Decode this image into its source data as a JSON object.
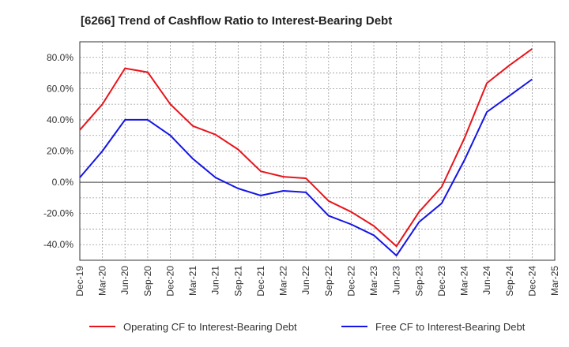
{
  "chart_data": {
    "type": "line",
    "title": "[6266]  Trend of Cashflow Ratio to Interest-Bearing Debt",
    "xlabel": "",
    "ylabel": "",
    "x": [
      "Dec-19",
      "Mar-20",
      "Jun-20",
      "Sep-20",
      "Dec-20",
      "Mar-21",
      "Jun-21",
      "Sep-21",
      "Dec-21",
      "Mar-22",
      "Jun-22",
      "Sep-22",
      "Dec-22",
      "Mar-23",
      "Jun-23",
      "Sep-23",
      "Dec-23",
      "Mar-24",
      "Jun-24",
      "Sep-24",
      "Dec-24",
      "Mar-25"
    ],
    "y_ticks": [
      "-40.0%",
      "-20.0%",
      "0.0%",
      "20.0%",
      "40.0%",
      "60.0%",
      "80.0%"
    ],
    "ylim": [
      -50,
      90
    ],
    "grid": true,
    "legend_position": "bottom",
    "series": [
      {
        "name": "Operating CF to Interest-Bearing Debt",
        "color": "#e8141b",
        "values": [
          33.5,
          50,
          73,
          70.5,
          50,
          36,
          30.5,
          21,
          7,
          3.5,
          2.5,
          -12,
          -19,
          -28,
          -41,
          -19,
          -3,
          28,
          63.5,
          75,
          85.5,
          null
        ]
      },
      {
        "name": "Free CF to Interest-Bearing Debt",
        "color": "#1414e6",
        "values": [
          3,
          20,
          40,
          40,
          30,
          15,
          3,
          -4,
          -8.5,
          -5.5,
          -6.5,
          -21.5,
          -27,
          -34,
          -47,
          -25.5,
          -13.5,
          14,
          45,
          55.5,
          66,
          null
        ]
      }
    ]
  }
}
